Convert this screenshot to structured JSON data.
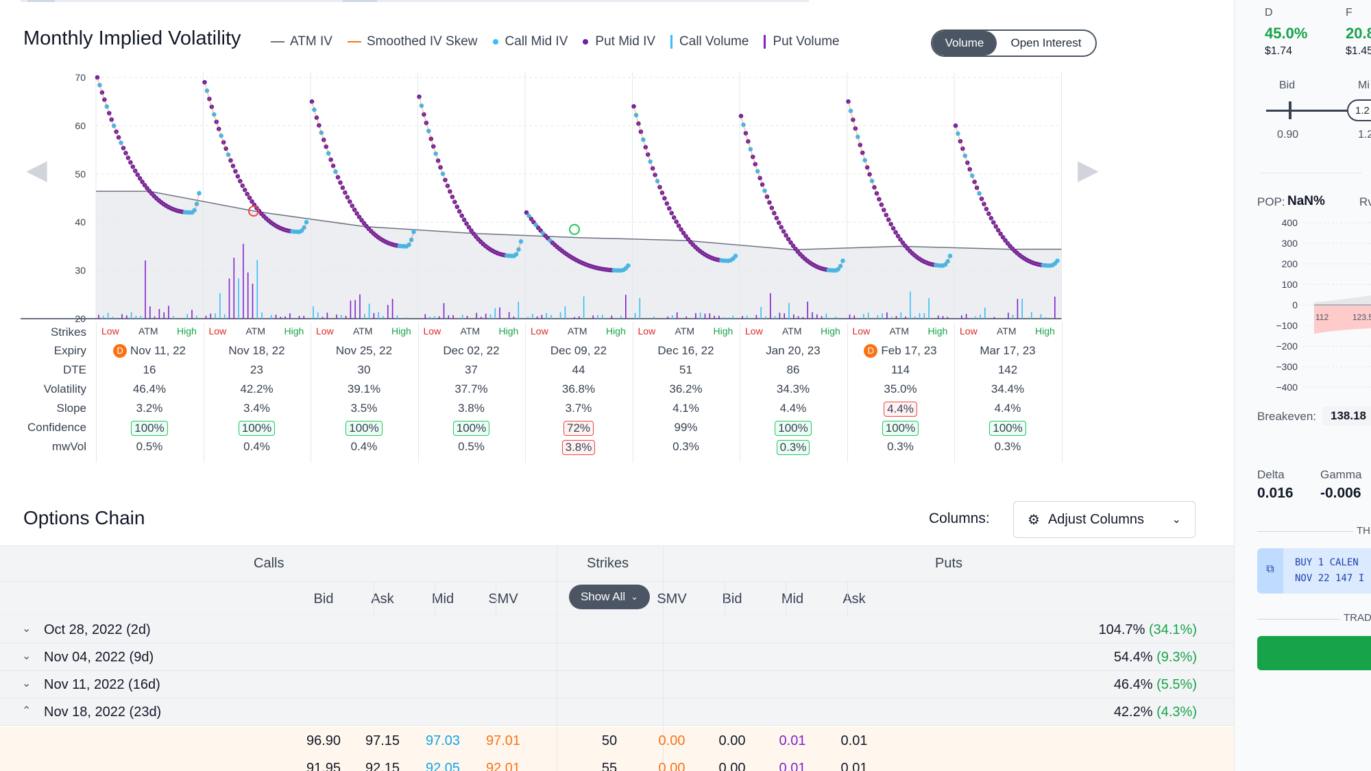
{
  "iv_section": {
    "title": "Monthly Implied Volatility",
    "legend": [
      {
        "label": "ATM IV",
        "kind": "line",
        "color": "#6b7280"
      },
      {
        "label": "Smoothed IV Skew",
        "kind": "line",
        "color": "#f97316"
      },
      {
        "label": "Call Mid IV",
        "kind": "dot",
        "color": "#38bdf8"
      },
      {
        "label": "Put Mid IV",
        "kind": "dot",
        "color": "#6b21a8"
      },
      {
        "label": "Call Volume",
        "kind": "bar",
        "color": "#38bdf8"
      },
      {
        "label": "Put Volume",
        "kind": "bar",
        "color": "#7e22ce"
      }
    ],
    "toggle": {
      "active": "Volume",
      "inactive": "Open Interest"
    }
  },
  "chart_data": {
    "type": "scatter",
    "ylim": [
      20,
      70
    ],
    "yticks": [
      "70",
      "60",
      "50",
      "40",
      "30",
      "20"
    ],
    "x_groups": [
      "Nov 11, 22",
      "Nov 18, 22",
      "Nov 25, 22",
      "Dec 02, 22",
      "Dec 09, 22",
      "Dec 16, 22",
      "Jan 20, 23",
      "Feb 17, 23",
      "Mar 17, 23"
    ],
    "atm_iv": [
      46.4,
      42.2,
      39.1,
      37.7,
      36.8,
      36.2,
      34.3,
      35.0,
      34.4
    ],
    "skew_curves": [
      {
        "start": 70,
        "min": 42,
        "end": 46
      },
      {
        "start": 69,
        "min": 38,
        "end": 40
      },
      {
        "start": 65,
        "min": 35,
        "end": 38
      },
      {
        "start": 66,
        "min": 33,
        "end": 36
      },
      {
        "start": 42,
        "min": 30,
        "end": 31
      },
      {
        "start": 64,
        "min": 32,
        "end": 33
      },
      {
        "start": 62,
        "min": 30,
        "end": 32
      },
      {
        "start": 65,
        "min": 31,
        "end": 33
      },
      {
        "start": 60,
        "min": 31,
        "end": 32
      }
    ]
  },
  "grid": {
    "row_labels": [
      "Strikes",
      "Expiry",
      "DTE",
      "Volatility",
      "Slope",
      "Confidence",
      "mwVol"
    ],
    "strike_labels": {
      "low": "Low",
      "atm": "ATM",
      "high": "High"
    },
    "columns": [
      {
        "expiry": "Nov 11, 22",
        "dividend": "D",
        "dte": "16",
        "vol": "46.4%",
        "slope": "3.2%",
        "slope_flag": false,
        "conf": "100%",
        "conf_flag": "ok",
        "mwvol": "0.5%",
        "mw_flag": ""
      },
      {
        "expiry": "Nov 18, 22",
        "dividend": "",
        "dte": "23",
        "vol": "42.2%",
        "slope": "3.4%",
        "slope_flag": false,
        "conf": "100%",
        "conf_flag": "ok",
        "mwvol": "0.4%",
        "mw_flag": ""
      },
      {
        "expiry": "Nov 25, 22",
        "dividend": "",
        "dte": "30",
        "vol": "39.1%",
        "slope": "3.5%",
        "slope_flag": false,
        "conf": "100%",
        "conf_flag": "ok",
        "mwvol": "0.4%",
        "mw_flag": ""
      },
      {
        "expiry": "Dec 02, 22",
        "dividend": "",
        "dte": "37",
        "vol": "37.7%",
        "slope": "3.8%",
        "slope_flag": false,
        "conf": "100%",
        "conf_flag": "ok",
        "mwvol": "0.5%",
        "mw_flag": ""
      },
      {
        "expiry": "Dec 09, 22",
        "dividend": "",
        "dte": "44",
        "vol": "36.8%",
        "slope": "3.7%",
        "slope_flag": false,
        "conf": "72%",
        "conf_flag": "bad",
        "mwvol": "3.8%",
        "mw_flag": "bad"
      },
      {
        "expiry": "Dec 16, 22",
        "dividend": "",
        "dte": "51",
        "vol": "36.2%",
        "slope": "4.1%",
        "slope_flag": false,
        "conf": "99%",
        "conf_flag": "",
        "mwvol": "0.3%",
        "mw_flag": ""
      },
      {
        "expiry": "Jan 20, 23",
        "dividend": "",
        "dte": "86",
        "vol": "34.3%",
        "slope": "4.4%",
        "slope_flag": false,
        "conf": "100%",
        "conf_flag": "ok",
        "mwvol": "0.3%",
        "mw_flag": "ok"
      },
      {
        "expiry": "Feb 17, 23",
        "dividend": "D",
        "dte": "114",
        "vol": "35.0%",
        "slope": "4.4%",
        "slope_flag": true,
        "conf": "100%",
        "conf_flag": "ok",
        "mwvol": "0.3%",
        "mw_flag": ""
      },
      {
        "expiry": "Mar 17, 23",
        "dividend": "",
        "dte": "142",
        "vol": "34.4%",
        "slope": "4.4%",
        "slope_flag": false,
        "conf": "100%",
        "conf_flag": "ok",
        "mwvol": "0.3%",
        "mw_flag": ""
      }
    ]
  },
  "options_chain": {
    "title": "Options Chain",
    "columns_label": "Columns:",
    "adjust_label": "Adjust Columns",
    "group_calls": "Calls",
    "group_strikes": "Strikes",
    "group_puts": "Puts",
    "show_all": "Show All",
    "call_headers": [
      "Bid",
      "Ask",
      "Mid",
      "SMV"
    ],
    "put_headers": [
      "SMV",
      "Bid",
      "Mid",
      "Ask"
    ],
    "expirations": [
      {
        "date": "Oct 28, 2022 (2d)",
        "iv": "104.7%",
        "chg": "(34.1%)",
        "expanded": false
      },
      {
        "date": "Nov 04, 2022 (9d)",
        "iv": "54.4%",
        "chg": "(9.3%)",
        "expanded": false
      },
      {
        "date": "Nov 11, 2022 (16d)",
        "iv": "46.4%",
        "chg": "(5.5%)",
        "expanded": false
      },
      {
        "date": "Nov 18, 2022 (23d)",
        "iv": "42.2%",
        "chg": "(4.3%)",
        "expanded": true
      }
    ],
    "rows": [
      {
        "c_bid": "96.90",
        "c_ask": "97.15",
        "c_mid": "97.03",
        "c_smv": "97.01",
        "strike": "50",
        "p_smv": "0.00",
        "p_bid": "0.00",
        "p_mid": "0.01",
        "p_ask": "0.01"
      },
      {
        "c_bid": "91.95",
        "c_ask": "92.15",
        "c_mid": "92.05",
        "c_smv": "92.01",
        "strike": "55",
        "p_smv": "0.00",
        "p_bid": "0.00",
        "p_mid": "0.01",
        "p_ask": "0.01"
      }
    ]
  },
  "right_panel": {
    "col_d": {
      "label": "D",
      "pct": "45.0%",
      "price": "$1.74"
    },
    "col_f": {
      "label": "F",
      "pct": "20.8",
      "price": "$1.45"
    },
    "bid_label": "Bid",
    "mid_label": "Mi",
    "slider_value": "1.2",
    "bid_value": "0.90",
    "mid_value": "1.2",
    "pop_label": "POP:",
    "pop_value": "NaN%",
    "rv_label": "Rv",
    "pl_ticks": [
      "400",
      "300",
      "200",
      "100",
      "0",
      "−100",
      "−200",
      "−300",
      "−400"
    ],
    "pl_x_ticks": [
      "112",
      "123.5"
    ],
    "breakeven_label": "Breakeven:",
    "breakeven_value": "138.18",
    "delta_label": "Delta",
    "delta_value": "0.016",
    "gamma_label": "Gamma",
    "gamma_value": "-0.006",
    "th_label": "TH",
    "order_line1": "BUY 1 CALEN",
    "order_line2": "NOV 22 147 I",
    "trade_label": "TRADE C"
  }
}
